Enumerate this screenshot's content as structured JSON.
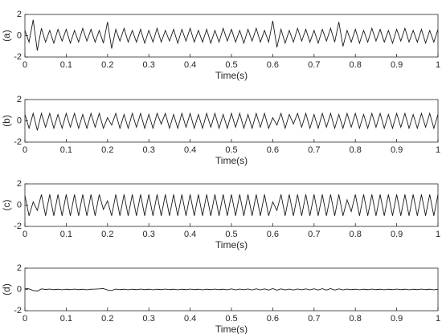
{
  "chart_data": [
    {
      "type": "line",
      "ylabel": "(a)",
      "xlabel": "Time(s)",
      "xlim": [
        0,
        1
      ],
      "ylim": [
        -2,
        2
      ],
      "xticks": [
        0,
        0.1,
        0.2,
        0.3,
        0.4,
        0.5,
        0.6,
        0.7,
        0.8,
        0.9,
        1
      ],
      "yticks": [
        -2,
        0,
        2
      ],
      "x": [
        0,
        0.01,
        0.02,
        0.03,
        0.04,
        0.05,
        0.06,
        0.07,
        0.08,
        0.09,
        0.1,
        0.11,
        0.12,
        0.13,
        0.14,
        0.15,
        0.16,
        0.17,
        0.18,
        0.19,
        0.2,
        0.21,
        0.22,
        0.23,
        0.24,
        0.25,
        0.26,
        0.27,
        0.28,
        0.29,
        0.3,
        0.31,
        0.32,
        0.33,
        0.34,
        0.35,
        0.36,
        0.37,
        0.38,
        0.39,
        0.4,
        0.41,
        0.42,
        0.43,
        0.44,
        0.45,
        0.46,
        0.47,
        0.48,
        0.49,
        0.5,
        0.51,
        0.52,
        0.53,
        0.54,
        0.55,
        0.56,
        0.57,
        0.58,
        0.59,
        0.6,
        0.61,
        0.62,
        0.63,
        0.64,
        0.65,
        0.66,
        0.67,
        0.68,
        0.69,
        0.7,
        0.71,
        0.72,
        0.73,
        0.74,
        0.75,
        0.76,
        0.77,
        0.78,
        0.79,
        0.8,
        0.81,
        0.82,
        0.83,
        0.84,
        0.85,
        0.86,
        0.87,
        0.88,
        0.89,
        0.9,
        0.91,
        0.92,
        0.93,
        0.94,
        0.95,
        0.96,
        0.97,
        0.98,
        0.99,
        1
      ],
      "series": [
        {
          "color": "#1a1a1a",
          "values": [
            0.5,
            -0.6,
            1.5,
            -1.4,
            0.7,
            -0.6,
            0.5,
            -0.7,
            0.6,
            -0.5,
            0.6,
            -0.7,
            0.5,
            -0.6,
            0.7,
            -0.5,
            0.6,
            -0.6,
            0.5,
            -0.7,
            1.3,
            -1.2,
            0.6,
            -0.5,
            0.7,
            -0.6,
            0.5,
            -0.6,
            0.6,
            -0.7,
            0.5,
            -0.6,
            0.7,
            -0.6,
            0.5,
            -0.5,
            0.6,
            -0.7,
            0.6,
            -0.5,
            0.7,
            -0.6,
            0.5,
            -0.6,
            0.6,
            -0.7,
            0.5,
            -0.6,
            0.7,
            -0.5,
            0.6,
            -0.6,
            0.5,
            -0.7,
            0.6,
            -0.5,
            0.7,
            -0.6,
            0.5,
            -0.6,
            1.4,
            -1.1,
            0.6,
            -0.7,
            0.5,
            -0.6,
            0.7,
            -0.5,
            0.6,
            -0.6,
            0.5,
            -0.7,
            0.6,
            -0.5,
            0.7,
            -0.6,
            1.3,
            -1.0,
            0.5,
            -0.6,
            0.6,
            -0.7,
            0.5,
            -0.6,
            0.7,
            -0.5,
            0.6,
            -0.6,
            0.5,
            -0.7,
            0.6,
            -0.5,
            0.7,
            -0.6,
            0.5,
            -0.6,
            0.6,
            -0.7,
            0.5,
            -0.6,
            0.6
          ]
        }
      ]
    },
    {
      "type": "line",
      "ylabel": "(b)",
      "xlabel": "Time(s)",
      "xlim": [
        0,
        1
      ],
      "ylim": [
        -2,
        2
      ],
      "xticks": [
        0,
        0.1,
        0.2,
        0.3,
        0.4,
        0.5,
        0.6,
        0.7,
        0.8,
        0.9,
        1
      ],
      "yticks": [
        -2,
        0,
        2
      ],
      "x": [
        0,
        0.01,
        0.02,
        0.03,
        0.04,
        0.05,
        0.06,
        0.07,
        0.08,
        0.09,
        0.1,
        0.11,
        0.12,
        0.13,
        0.14,
        0.15,
        0.16,
        0.17,
        0.18,
        0.19,
        0.2,
        0.21,
        0.22,
        0.23,
        0.24,
        0.25,
        0.26,
        0.27,
        0.28,
        0.29,
        0.3,
        0.31,
        0.32,
        0.33,
        0.34,
        0.35,
        0.36,
        0.37,
        0.38,
        0.39,
        0.4,
        0.41,
        0.42,
        0.43,
        0.44,
        0.45,
        0.46,
        0.47,
        0.48,
        0.49,
        0.5,
        0.51,
        0.52,
        0.53,
        0.54,
        0.55,
        0.56,
        0.57,
        0.58,
        0.59,
        0.6,
        0.61,
        0.62,
        0.63,
        0.64,
        0.65,
        0.66,
        0.67,
        0.68,
        0.69,
        0.7,
        0.71,
        0.72,
        0.73,
        0.74,
        0.75,
        0.76,
        0.77,
        0.78,
        0.79,
        0.8,
        0.81,
        0.82,
        0.83,
        0.84,
        0.85,
        0.86,
        0.87,
        0.88,
        0.89,
        0.9,
        0.91,
        0.92,
        0.93,
        0.94,
        0.95,
        0.96,
        0.97,
        0.98,
        0.99,
        1
      ],
      "series": [
        {
          "color": "#1a1a1a",
          "values": [
            0.6,
            -0.7,
            0.7,
            -0.9,
            0.7,
            -0.6,
            0.7,
            -0.7,
            0.6,
            -0.7,
            0.7,
            -0.6,
            0.7,
            -0.7,
            0.6,
            -0.7,
            0.7,
            -0.6,
            0.7,
            -0.7,
            0.3,
            -0.4,
            0.7,
            -0.7,
            0.6,
            -0.7,
            0.7,
            -0.6,
            0.7,
            -0.7,
            0.6,
            -0.7,
            0.7,
            -0.3,
            0.7,
            -0.7,
            0.6,
            -0.7,
            0.7,
            -0.6,
            0.7,
            -0.7,
            0.6,
            -0.7,
            0.7,
            -0.6,
            0.7,
            -0.7,
            0.6,
            -0.7,
            0.7,
            -0.6,
            0.7,
            -0.7,
            0.6,
            -0.7,
            0.7,
            -0.6,
            0.7,
            -0.7,
            0.3,
            -0.4,
            0.7,
            -0.7,
            0.6,
            -0.3,
            0.7,
            -0.6,
            0.7,
            -0.7,
            0.6,
            -0.7,
            0.7,
            -0.6,
            0.7,
            -0.7,
            0.6,
            -0.7,
            0.7,
            -0.6,
            0.7,
            -0.7,
            0.6,
            -0.7,
            0.7,
            -0.6,
            0.7,
            -0.7,
            0.6,
            -0.7,
            0.7,
            -0.6,
            0.7,
            -0.7,
            0.6,
            -0.7,
            0.7,
            -0.6,
            0.7,
            -0.7,
            0.6
          ]
        }
      ]
    },
    {
      "type": "line",
      "ylabel": "(c)",
      "xlabel": "Time(s)",
      "xlim": [
        0,
        1
      ],
      "ylim": [
        -2,
        2
      ],
      "xticks": [
        0,
        0.1,
        0.2,
        0.3,
        0.4,
        0.5,
        0.6,
        0.7,
        0.8,
        0.9,
        1
      ],
      "yticks": [
        -2,
        0,
        2
      ],
      "x": [
        0,
        0.01,
        0.02,
        0.03,
        0.04,
        0.05,
        0.06,
        0.07,
        0.08,
        0.09,
        0.1,
        0.11,
        0.12,
        0.13,
        0.14,
        0.15,
        0.16,
        0.17,
        0.18,
        0.19,
        0.2,
        0.21,
        0.22,
        0.23,
        0.24,
        0.25,
        0.26,
        0.27,
        0.28,
        0.29,
        0.3,
        0.31,
        0.32,
        0.33,
        0.34,
        0.35,
        0.36,
        0.37,
        0.38,
        0.39,
        0.4,
        0.41,
        0.42,
        0.43,
        0.44,
        0.45,
        0.46,
        0.47,
        0.48,
        0.49,
        0.5,
        0.51,
        0.52,
        0.53,
        0.54,
        0.55,
        0.56,
        0.57,
        0.58,
        0.59,
        0.6,
        0.61,
        0.62,
        0.63,
        0.64,
        0.65,
        0.66,
        0.67,
        0.68,
        0.69,
        0.7,
        0.71,
        0.72,
        0.73,
        0.74,
        0.75,
        0.76,
        0.77,
        0.78,
        0.79,
        0.8,
        0.81,
        0.82,
        0.83,
        0.84,
        0.85,
        0.86,
        0.87,
        0.88,
        0.89,
        0.9,
        0.91,
        0.92,
        0.93,
        0.94,
        0.95,
        0.96,
        0.97,
        0.98,
        0.99,
        1
      ],
      "series": [
        {
          "color": "#1a1a1a",
          "values": [
            0.9,
            -1.0,
            0.3,
            -0.5,
            1.0,
            -1.0,
            1.0,
            -1.0,
            1.0,
            -1.0,
            1.0,
            -1.0,
            1.0,
            -1.0,
            1.0,
            -1.0,
            1.0,
            -1.0,
            1.0,
            -0.4,
            0.4,
            -1.0,
            1.0,
            -1.0,
            1.0,
            -1.0,
            1.0,
            -1.0,
            1.0,
            -1.0,
            1.0,
            -1.0,
            1.0,
            -1.0,
            1.0,
            -1.0,
            1.0,
            -1.0,
            1.0,
            -1.0,
            1.0,
            -1.0,
            1.0,
            -1.0,
            1.0,
            -1.0,
            1.0,
            -1.0,
            1.0,
            -1.0,
            1.0,
            -1.0,
            1.0,
            -1.0,
            1.0,
            -1.0,
            1.0,
            -1.0,
            1.0,
            -1.0,
            0.3,
            -0.5,
            1.0,
            -1.0,
            1.0,
            -1.0,
            1.0,
            -1.0,
            1.0,
            -1.0,
            1.0,
            -1.0,
            1.0,
            -1.0,
            1.0,
            -1.0,
            1.0,
            -1.0,
            0.5,
            -0.6,
            1.0,
            -1.0,
            1.0,
            -1.0,
            1.0,
            -1.0,
            1.0,
            -1.0,
            1.0,
            -1.0,
            1.0,
            -1.0,
            1.0,
            -1.0,
            1.0,
            -1.0,
            1.0,
            -1.0,
            1.0,
            -1.0,
            1.0
          ]
        }
      ]
    },
    {
      "type": "line",
      "ylabel": "(d)",
      "xlabel": "Time(s)",
      "xlim": [
        0,
        1
      ],
      "ylim": [
        -2,
        2
      ],
      "xticks": [
        0,
        0.1,
        0.2,
        0.3,
        0.4,
        0.5,
        0.6,
        0.7,
        0.8,
        0.9,
        1
      ],
      "yticks": [
        -2,
        0,
        2
      ],
      "x": [
        0,
        0.01,
        0.02,
        0.03,
        0.04,
        0.05,
        0.06,
        0.07,
        0.08,
        0.09,
        0.1,
        0.11,
        0.12,
        0.13,
        0.14,
        0.15,
        0.16,
        0.17,
        0.18,
        0.19,
        0.2,
        0.21,
        0.22,
        0.23,
        0.24,
        0.25,
        0.26,
        0.27,
        0.28,
        0.29,
        0.3,
        0.31,
        0.32,
        0.33,
        0.34,
        0.35,
        0.36,
        0.37,
        0.38,
        0.39,
        0.4,
        0.41,
        0.42,
        0.43,
        0.44,
        0.45,
        0.46,
        0.47,
        0.48,
        0.49,
        0.5,
        0.51,
        0.52,
        0.53,
        0.54,
        0.55,
        0.56,
        0.57,
        0.58,
        0.59,
        0.6,
        0.61,
        0.62,
        0.63,
        0.64,
        0.65,
        0.66,
        0.67,
        0.68,
        0.69,
        0.7,
        0.71,
        0.72,
        0.73,
        0.74,
        0.75,
        0.76,
        0.77,
        0.78,
        0.79,
        0.8,
        0.81,
        0.82,
        0.83,
        0.84,
        0.85,
        0.86,
        0.87,
        0.88,
        0.89,
        0.9,
        0.91,
        0.92,
        0.93,
        0.94,
        0.95,
        0.96,
        0.97,
        0.98,
        0.99,
        1
      ],
      "series": [
        {
          "color": "#1a1a1a",
          "values": [
            0.1,
            0.05,
            -0.1,
            -0.15,
            0.05,
            0,
            0.03,
            -0.02,
            0.02,
            -0.03,
            0.02,
            -0.02,
            0.03,
            -0.02,
            0.02,
            -0.03,
            0.02,
            0.03,
            0.05,
            0.08,
            -0.05,
            -0.1,
            0.03,
            -0.02,
            0.02,
            -0.03,
            0.02,
            -0.02,
            0.03,
            -0.02,
            0.02,
            -0.03,
            0.02,
            -0.02,
            0.03,
            -0.02,
            0.02,
            -0.03,
            0.02,
            -0.02,
            0.03,
            -0.02,
            0.02,
            -0.03,
            0.02,
            -0.02,
            0.03,
            -0.02,
            0.02,
            -0.03,
            0.05,
            -0.04,
            0.03,
            -0.02,
            0.04,
            -0.05,
            0.06,
            -0.04,
            0.05,
            -0.06,
            0.08,
            -0.07,
            0.05,
            -0.04,
            0.03,
            -0.05,
            0.04,
            -0.03,
            0.05,
            -0.04,
            0.06,
            -0.05,
            0.07,
            -0.06,
            0.08,
            -0.06,
            0.05,
            -0.04,
            0.03,
            -0.02,
            0.02,
            -0.03,
            0.02,
            -0.02,
            0.03,
            -0.02,
            0.02,
            -0.03,
            0.02,
            -0.02,
            0.03,
            -0.02,
            0.02,
            -0.03,
            0.02,
            -0.02,
            0.03,
            -0.02,
            0.02,
            -0.03,
            0.02
          ]
        }
      ]
    }
  ]
}
